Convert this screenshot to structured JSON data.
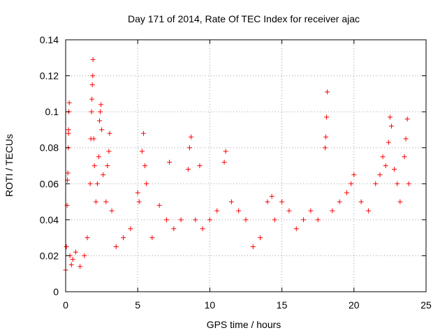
{
  "chart_data": {
    "type": "scatter",
    "title": "Day 171 of 2014, Rate Of TEC Index for receiver ajac",
    "xlabel": "GPS time / hours",
    "ylabel": "ROTI / TECUs",
    "xlim": [
      0,
      25
    ],
    "ylim": [
      0,
      0.14
    ],
    "x_ticks": [
      0,
      5,
      10,
      15,
      20,
      25
    ],
    "x_tick_labels": [
      "0",
      "5",
      "10",
      "15",
      "20",
      "25"
    ],
    "y_ticks": [
      0,
      0.02,
      0.04,
      0.06,
      0.08,
      0.1,
      0.12,
      0.14
    ],
    "y_tick_labels": [
      "0",
      "0.02",
      "0.04",
      "0.06",
      "0.08",
      "0.1",
      "0.12",
      "0.14"
    ],
    "grid": true,
    "marker": "+",
    "color": "#ff0000",
    "series": [
      {
        "name": "ROTI",
        "points": [
          [
            0.0,
            0.012
          ],
          [
            0.05,
            0.025
          ],
          [
            0.1,
            0.048
          ],
          [
            0.12,
            0.062
          ],
          [
            0.15,
            0.066
          ],
          [
            0.18,
            0.08
          ],
          [
            0.2,
            0.088
          ],
          [
            0.22,
            0.1
          ],
          [
            0.25,
            0.105
          ],
          [
            0.2,
            0.09
          ],
          [
            0.3,
            0.02
          ],
          [
            0.4,
            0.015
          ],
          [
            0.5,
            0.018
          ],
          [
            0.7,
            0.022
          ],
          [
            1.0,
            0.014
          ],
          [
            1.3,
            0.02
          ],
          [
            1.5,
            0.03
          ],
          [
            1.7,
            0.06
          ],
          [
            1.75,
            0.085
          ],
          [
            1.8,
            0.1
          ],
          [
            1.82,
            0.107
          ],
          [
            1.85,
            0.115
          ],
          [
            1.88,
            0.12
          ],
          [
            1.9,
            0.129
          ],
          [
            1.95,
            0.085
          ],
          [
            2.0,
            0.07
          ],
          [
            2.1,
            0.05
          ],
          [
            2.2,
            0.06
          ],
          [
            2.3,
            0.075
          ],
          [
            2.35,
            0.095
          ],
          [
            2.4,
            0.1
          ],
          [
            2.45,
            0.104
          ],
          [
            2.5,
            0.09
          ],
          [
            2.6,
            0.065
          ],
          [
            2.8,
            0.05
          ],
          [
            2.9,
            0.07
          ],
          [
            3.0,
            0.078
          ],
          [
            3.05,
            0.088
          ],
          [
            3.2,
            0.045
          ],
          [
            3.5,
            0.025
          ],
          [
            4.0,
            0.03
          ],
          [
            4.5,
            0.035
          ],
          [
            5.0,
            0.055
          ],
          [
            5.1,
            0.05
          ],
          [
            5.3,
            0.078
          ],
          [
            5.4,
            0.088
          ],
          [
            5.5,
            0.07
          ],
          [
            5.6,
            0.06
          ],
          [
            6.0,
            0.03
          ],
          [
            6.5,
            0.048
          ],
          [
            7.0,
            0.04
          ],
          [
            7.2,
            0.072
          ],
          [
            7.5,
            0.035
          ],
          [
            8.0,
            0.04
          ],
          [
            8.5,
            0.068
          ],
          [
            8.6,
            0.08
          ],
          [
            8.7,
            0.086
          ],
          [
            9.0,
            0.04
          ],
          [
            9.3,
            0.07
          ],
          [
            9.5,
            0.035
          ],
          [
            10.0,
            0.04
          ],
          [
            10.5,
            0.045
          ],
          [
            11.0,
            0.072
          ],
          [
            11.1,
            0.078
          ],
          [
            11.5,
            0.05
          ],
          [
            12.0,
            0.045
          ],
          [
            12.5,
            0.04
          ],
          [
            13.0,
            0.025
          ],
          [
            13.5,
            0.03
          ],
          [
            14.0,
            0.05
          ],
          [
            14.3,
            0.053
          ],
          [
            14.5,
            0.04
          ],
          [
            15.0,
            0.05
          ],
          [
            15.5,
            0.045
          ],
          [
            16.0,
            0.035
          ],
          [
            16.5,
            0.04
          ],
          [
            17.0,
            0.045
          ],
          [
            17.5,
            0.04
          ],
          [
            18.0,
            0.08
          ],
          [
            18.05,
            0.086
          ],
          [
            18.1,
            0.097
          ],
          [
            18.15,
            0.111
          ],
          [
            18.5,
            0.045
          ],
          [
            19.0,
            0.05
          ],
          [
            19.5,
            0.055
          ],
          [
            19.8,
            0.06
          ],
          [
            20.0,
            0.065
          ],
          [
            20.5,
            0.05
          ],
          [
            21.0,
            0.045
          ],
          [
            21.5,
            0.06
          ],
          [
            21.8,
            0.065
          ],
          [
            22.0,
            0.075
          ],
          [
            22.2,
            0.07
          ],
          [
            22.4,
            0.083
          ],
          [
            22.5,
            0.097
          ],
          [
            22.6,
            0.092
          ],
          [
            22.8,
            0.068
          ],
          [
            23.0,
            0.06
          ],
          [
            23.2,
            0.05
          ],
          [
            23.5,
            0.075
          ],
          [
            23.6,
            0.085
          ],
          [
            23.7,
            0.096
          ],
          [
            23.8,
            0.06
          ]
        ]
      }
    ]
  }
}
